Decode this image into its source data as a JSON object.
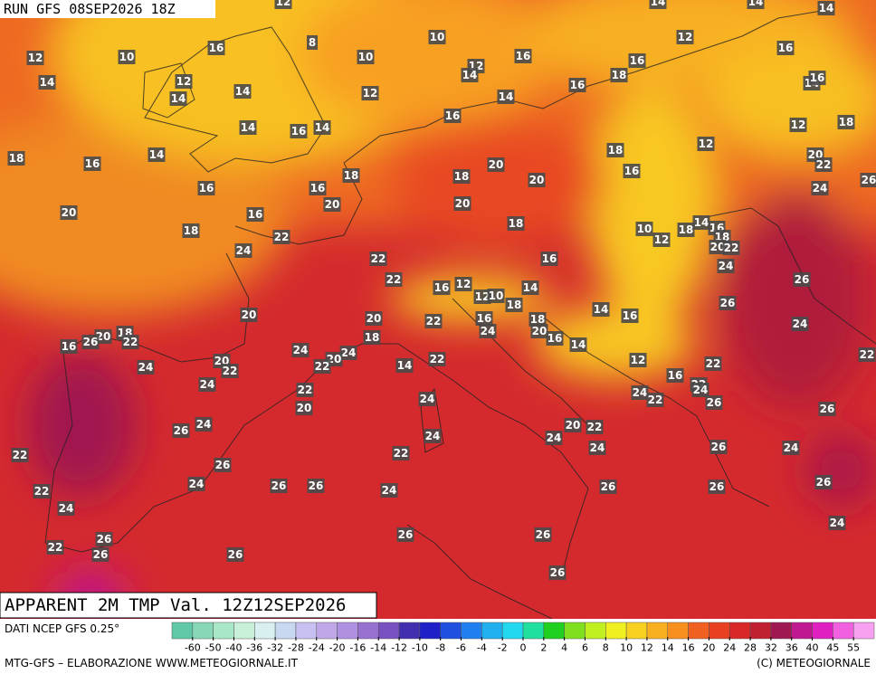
{
  "header": {
    "run": "RUN GFS 08SEP2026 18Z",
    "title": "APPARENT 2M TMP Val. 12Z12SEP2026"
  },
  "footer": {
    "source": "DATI NCEP GFS 0.25°",
    "credit": "MTG-GFS – ELABORAZIONE WWW.METEOGIORNALE.IT",
    "copyright": "(C) METEOGIORNALE"
  },
  "map_labels": [
    12,
    14,
    14,
    14,
    8,
    10,
    12,
    16,
    12,
    10,
    16,
    10,
    12,
    16,
    16,
    14,
    12,
    14,
    18,
    16,
    14,
    16,
    14,
    14,
    12,
    14,
    16,
    12,
    18,
    14,
    16,
    14,
    18,
    16,
    14,
    12,
    18,
    20,
    22,
    18,
    18,
    20,
    16,
    20,
    16,
    16,
    24,
    26,
    20,
    20,
    20,
    16,
    18,
    18,
    22,
    10,
    12,
    18,
    14,
    16,
    18,
    20,
    22,
    24,
    22,
    16,
    24,
    22,
    16,
    12,
    12,
    10,
    14,
    26,
    18,
    26,
    14,
    16,
    20,
    20,
    22,
    16,
    18,
    24,
    18,
    20,
    22,
    26,
    16,
    18,
    24,
    20,
    16,
    14,
    24,
    24,
    20,
    22,
    20,
    22,
    24,
    14,
    22,
    12,
    22,
    22,
    16,
    24,
    22,
    24,
    24,
    22,
    26,
    22,
    24,
    20,
    26,
    20,
    22,
    24,
    26,
    24,
    24,
    24,
    26,
    24,
    22,
    22,
    26,
    24,
    26,
    26,
    24,
    26,
    26,
    26,
    22,
    24,
    26,
    26,
    24,
    26,
    22,
    26,
    26,
    26
  ],
  "colorbar": {
    "ticks": [
      -60,
      -50,
      -40,
      -36,
      -32,
      -28,
      -24,
      -20,
      -16,
      -14,
      -12,
      -10,
      -8,
      -6,
      -4,
      -2,
      0,
      2,
      4,
      6,
      8,
      10,
      12,
      14,
      16,
      20,
      24,
      28,
      32,
      36,
      40,
      45,
      55
    ],
    "colors": [
      "#5fc8a8",
      "#88d8b8",
      "#a8e8c8",
      "#c8f0d8",
      "#d8f0f0",
      "#c8d8f0",
      "#c8c0f0",
      "#c0a8e8",
      "#b090e0",
      "#9870d0",
      "#7850c0",
      "#4030b0",
      "#2020c8",
      "#2050e0",
      "#2080f0",
      "#20b0f0",
      "#20d8f0",
      "#20e0a0",
      "#20d020",
      "#80e020",
      "#c0f020",
      "#f0f020",
      "#f8d020",
      "#f8b020",
      "#f89020",
      "#f06020",
      "#e84020",
      "#d82828",
      "#c02030",
      "#a01850",
      "#c01890",
      "#e020c0",
      "#f060e0",
      "#f8a0f0"
    ]
  }
}
